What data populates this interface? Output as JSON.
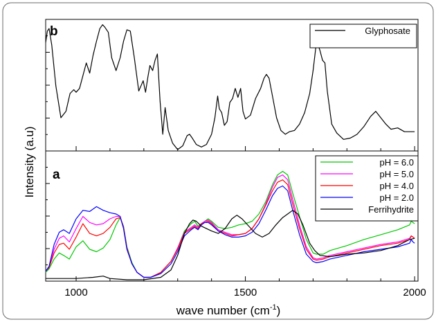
{
  "frame_color": "#6b6b6b",
  "axes": {
    "xlabel_main": "wave number (cm",
    "xlabel_sup": "-1",
    "xlabel_end": ")",
    "ylabel": "Intensity (a.u)"
  },
  "chart_data": [
    {
      "type": "line",
      "panel": "b",
      "xlim": [
        910,
        2010
      ],
      "ylim": [
        0,
        1
      ],
      "y_ticks_labeled": false,
      "legend_position": "top-right",
      "series": [
        {
          "name": "Glyphosate",
          "color": "#000000",
          "x": [
            910,
            915,
            920,
            928,
            940,
            955,
            970,
            982,
            993,
            1000,
            1010,
            1020,
            1030,
            1040,
            1050,
            1060,
            1070,
            1078,
            1085,
            1095,
            1105,
            1118,
            1130,
            1140,
            1150,
            1160,
            1172,
            1185,
            1198,
            1205,
            1212,
            1218,
            1226,
            1233,
            1240,
            1248,
            1256,
            1263,
            1272,
            1285,
            1300,
            1315,
            1328,
            1335,
            1343,
            1355,
            1370,
            1385,
            1400,
            1410,
            1418,
            1423,
            1430,
            1438,
            1446,
            1454,
            1462,
            1470,
            1478,
            1486,
            1493,
            1500,
            1515,
            1530,
            1545,
            1555,
            1562,
            1570,
            1580,
            1592,
            1605,
            1618,
            1630,
            1645,
            1660,
            1675,
            1690,
            1700,
            1708,
            1715,
            1720,
            1728,
            1735,
            1742,
            1755,
            1770,
            1790,
            1810,
            1830,
            1850,
            1870,
            1885,
            1900,
            1915,
            1930,
            1950,
            1970,
            1990,
            2000
          ],
          "y": [
            0.84,
            0.93,
            0.95,
            0.82,
            0.5,
            0.25,
            0.3,
            0.44,
            0.47,
            0.45,
            0.48,
            0.58,
            0.68,
            0.6,
            0.74,
            0.85,
            0.95,
            0.98,
            0.96,
            0.92,
            0.72,
            0.62,
            0.72,
            0.85,
            0.94,
            0.93,
            0.72,
            0.46,
            0.54,
            0.45,
            0.57,
            0.66,
            0.62,
            0.7,
            0.75,
            0.38,
            0.12,
            0.33,
            0.15,
            0.05,
            0.0,
            0.03,
            0.11,
            0.12,
            0.09,
            0.04,
            0.02,
            0.04,
            0.12,
            0.25,
            0.42,
            0.32,
            0.29,
            0.19,
            0.22,
            0.37,
            0.4,
            0.48,
            0.41,
            0.48,
            0.3,
            0.24,
            0.27,
            0.4,
            0.48,
            0.56,
            0.59,
            0.56,
            0.42,
            0.25,
            0.15,
            0.12,
            0.14,
            0.15,
            0.2,
            0.29,
            0.44,
            0.62,
            0.8,
            0.82,
            0.78,
            0.7,
            0.68,
            0.46,
            0.2,
            0.13,
            0.08,
            0.09,
            0.12,
            0.18,
            0.26,
            0.3,
            0.25,
            0.2,
            0.16,
            0.17,
            0.14,
            0.14,
            0.14
          ]
        }
      ]
    },
    {
      "type": "line",
      "panel": "a",
      "xlim": [
        910,
        2010
      ],
      "ylim": [
        0,
        1
      ],
      "x_ticks": [
        1000,
        1500,
        2000
      ],
      "y_ticks_labeled": false,
      "legend_position": "top-right",
      "series": [
        {
          "name": "pH = 6.0",
          "color": "#00c800",
          "x": [
            910,
            920,
            935,
            950,
            963,
            980,
            1000,
            1020,
            1040,
            1060,
            1080,
            1100,
            1118,
            1130,
            1140,
            1150,
            1165,
            1180,
            1200,
            1220,
            1250,
            1280,
            1300,
            1320,
            1340,
            1350,
            1360,
            1370,
            1380,
            1390,
            1400,
            1420,
            1440,
            1460,
            1480,
            1500,
            1520,
            1540,
            1560,
            1580,
            1595,
            1610,
            1625,
            1640,
            1660,
            1680,
            1700,
            1710,
            1730,
            1750,
            1800,
            1850,
            1900,
            1950,
            1985,
            1990,
            1995,
            2000
          ],
          "y": [
            0.06,
            0.09,
            0.17,
            0.22,
            0.2,
            0.17,
            0.27,
            0.32,
            0.25,
            0.23,
            0.26,
            0.33,
            0.45,
            0.51,
            0.44,
            0.27,
            0.14,
            0.06,
            0.02,
            0.02,
            0.06,
            0.15,
            0.26,
            0.4,
            0.46,
            0.48,
            0.44,
            0.46,
            0.48,
            0.5,
            0.48,
            0.43,
            0.42,
            0.43,
            0.45,
            0.46,
            0.48,
            0.54,
            0.64,
            0.78,
            0.86,
            0.89,
            0.86,
            0.71,
            0.52,
            0.33,
            0.22,
            0.21,
            0.21,
            0.24,
            0.28,
            0.33,
            0.37,
            0.41,
            0.45,
            0.48,
            0.47,
            0.46
          ]
        },
        {
          "name": "pH = 5.0",
          "color": "#ff00ff",
          "x": [
            910,
            920,
            935,
            950,
            963,
            980,
            1000,
            1020,
            1040,
            1060,
            1080,
            1100,
            1118,
            1130,
            1140,
            1150,
            1165,
            1180,
            1200,
            1220,
            1250,
            1280,
            1300,
            1320,
            1340,
            1350,
            1360,
            1370,
            1380,
            1390,
            1400,
            1420,
            1440,
            1460,
            1480,
            1500,
            1520,
            1540,
            1560,
            1580,
            1595,
            1610,
            1625,
            1640,
            1660,
            1680,
            1700,
            1710,
            1730,
            1750,
            1800,
            1850,
            1900,
            1950,
            1985,
            1990,
            1995,
            2000
          ],
          "y": [
            0.07,
            0.1,
            0.25,
            0.34,
            0.36,
            0.31,
            0.42,
            0.52,
            0.47,
            0.45,
            0.46,
            0.5,
            0.52,
            0.52,
            0.43,
            0.25,
            0.13,
            0.06,
            0.02,
            0.02,
            0.06,
            0.15,
            0.26,
            0.39,
            0.43,
            0.45,
            0.43,
            0.46,
            0.48,
            0.49,
            0.47,
            0.41,
            0.39,
            0.37,
            0.37,
            0.38,
            0.42,
            0.5,
            0.62,
            0.76,
            0.84,
            0.86,
            0.82,
            0.66,
            0.45,
            0.27,
            0.18,
            0.17,
            0.18,
            0.2,
            0.23,
            0.26,
            0.29,
            0.31,
            0.34,
            0.36,
            0.35,
            0.34
          ]
        },
        {
          "name": "pH = 4.0",
          "color": "#ff0000",
          "x": [
            910,
            920,
            935,
            950,
            963,
            980,
            1000,
            1020,
            1040,
            1060,
            1080,
            1100,
            1118,
            1130,
            1140,
            1150,
            1165,
            1180,
            1200,
            1220,
            1250,
            1280,
            1300,
            1320,
            1340,
            1350,
            1360,
            1370,
            1380,
            1390,
            1400,
            1420,
            1440,
            1460,
            1480,
            1500,
            1520,
            1540,
            1560,
            1580,
            1595,
            1610,
            1625,
            1640,
            1660,
            1680,
            1700,
            1710,
            1730,
            1750,
            1800,
            1850,
            1900,
            1950,
            1985,
            1990,
            1995,
            2000
          ],
          "y": [
            0.07,
            0.1,
            0.22,
            0.29,
            0.3,
            0.25,
            0.35,
            0.46,
            0.38,
            0.36,
            0.38,
            0.43,
            0.5,
            0.51,
            0.43,
            0.26,
            0.13,
            0.06,
            0.02,
            0.02,
            0.06,
            0.15,
            0.25,
            0.38,
            0.42,
            0.44,
            0.42,
            0.46,
            0.47,
            0.48,
            0.46,
            0.4,
            0.38,
            0.36,
            0.37,
            0.38,
            0.42,
            0.5,
            0.61,
            0.73,
            0.8,
            0.82,
            0.78,
            0.62,
            0.42,
            0.25,
            0.17,
            0.16,
            0.17,
            0.19,
            0.22,
            0.25,
            0.28,
            0.3,
            0.33,
            0.36,
            0.35,
            0.34
          ]
        },
        {
          "name": "pH = 2.0",
          "color": "#0000ff",
          "x": [
            910,
            920,
            935,
            950,
            963,
            980,
            1000,
            1020,
            1040,
            1060,
            1080,
            1100,
            1118,
            1130,
            1140,
            1150,
            1165,
            1180,
            1200,
            1220,
            1250,
            1280,
            1300,
            1320,
            1340,
            1350,
            1360,
            1370,
            1380,
            1390,
            1400,
            1420,
            1440,
            1460,
            1480,
            1500,
            1520,
            1540,
            1560,
            1580,
            1595,
            1610,
            1625,
            1640,
            1660,
            1680,
            1700,
            1710,
            1730,
            1750,
            1800,
            1850,
            1900,
            1950,
            1985,
            1990,
            1995,
            2000
          ],
          "y": [
            0.07,
            0.11,
            0.29,
            0.39,
            0.41,
            0.38,
            0.5,
            0.57,
            0.56,
            0.6,
            0.57,
            0.55,
            0.54,
            0.52,
            0.42,
            0.25,
            0.13,
            0.06,
            0.02,
            0.02,
            0.05,
            0.13,
            0.23,
            0.36,
            0.41,
            0.43,
            0.41,
            0.45,
            0.47,
            0.47,
            0.45,
            0.4,
            0.37,
            0.35,
            0.35,
            0.36,
            0.39,
            0.46,
            0.57,
            0.69,
            0.75,
            0.77,
            0.73,
            0.57,
            0.37,
            0.21,
            0.15,
            0.14,
            0.15,
            0.17,
            0.2,
            0.23,
            0.25,
            0.27,
            0.3,
            0.33,
            0.31,
            0.3
          ]
        },
        {
          "name": "Ferrihydrite",
          "color": "#000000",
          "x": [
            910,
            950,
            1000,
            1050,
            1080,
            1100,
            1150,
            1200,
            1250,
            1280,
            1300,
            1320,
            1335,
            1345,
            1355,
            1370,
            1385,
            1400,
            1420,
            1440,
            1460,
            1475,
            1490,
            1510,
            1530,
            1550,
            1570,
            1590,
            1610,
            1625,
            1640,
            1655,
            1670,
            1690,
            1705,
            1720,
            1750,
            1800,
            1850,
            1900,
            1950,
            1985,
            2000
          ],
          "y": [
            0.01,
            0.01,
            0.01,
            0.02,
            0.03,
            0.01,
            0.0,
            0.0,
            0.02,
            0.08,
            0.2,
            0.38,
            0.46,
            0.49,
            0.48,
            0.44,
            0.42,
            0.4,
            0.38,
            0.42,
            0.5,
            0.53,
            0.5,
            0.44,
            0.38,
            0.35,
            0.38,
            0.45,
            0.51,
            0.54,
            0.57,
            0.54,
            0.45,
            0.3,
            0.24,
            0.2,
            0.19,
            0.21,
            0.22,
            0.24,
            0.28,
            0.33,
            0.34
          ]
        }
      ]
    }
  ]
}
